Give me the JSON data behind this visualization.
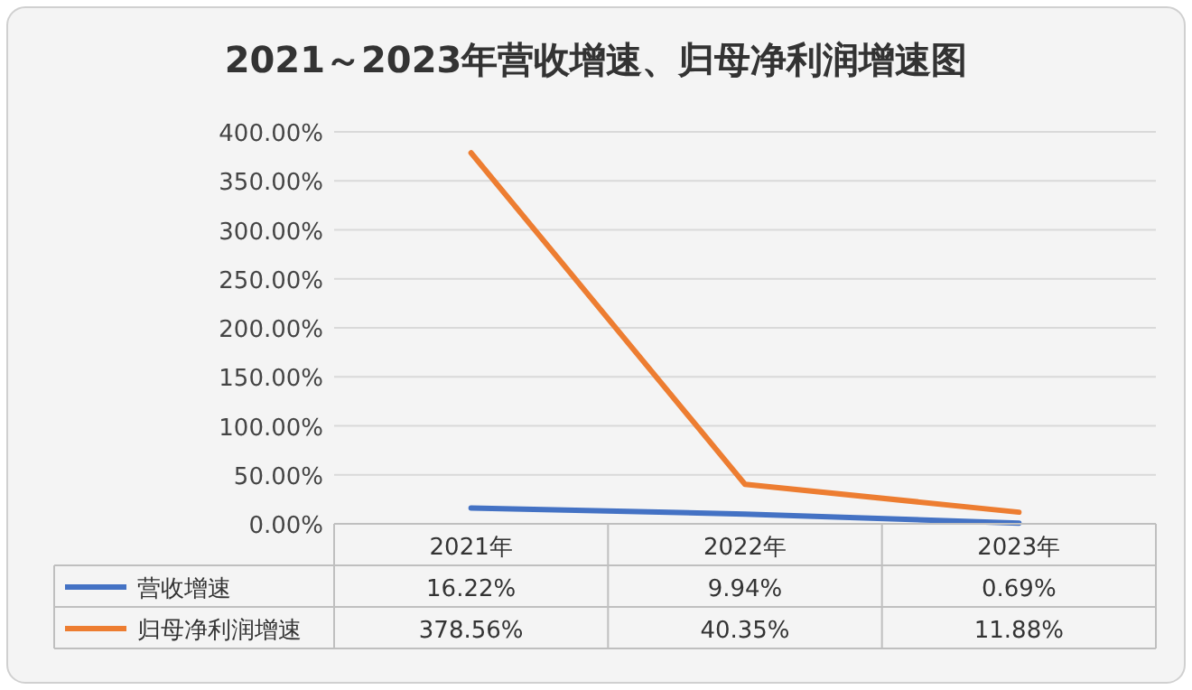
{
  "chart_data": {
    "type": "line",
    "title": "2021～2023年营收增速、归母净利润增速图",
    "categories": [
      "2021年",
      "2022年",
      "2023年"
    ],
    "series": [
      {
        "name": "营收增速",
        "color": "#4472c4",
        "values": [
          16.22,
          9.94,
          0.69
        ],
        "value_labels": [
          "16.22%",
          "9.94%",
          "0.69%"
        ]
      },
      {
        "name": "归母净利润增速",
        "color": "#ed7d31",
        "values": [
          378.56,
          40.35,
          11.88
        ],
        "value_labels": [
          "378.56%",
          "40.35%",
          "11.88%"
        ]
      }
    ],
    "ylim": [
      0,
      400
    ],
    "yticks": [
      {
        "value": 0,
        "label": "0.00%"
      },
      {
        "value": 50,
        "label": "50.00%"
      },
      {
        "value": 100,
        "label": "100.00%"
      },
      {
        "value": 150,
        "label": "150.00%"
      },
      {
        "value": 200,
        "label": "200.00%"
      },
      {
        "value": 250,
        "label": "250.00%"
      },
      {
        "value": 300,
        "label": "300.00%"
      },
      {
        "value": 350,
        "label": "350.00%"
      },
      {
        "value": 400,
        "label": "400.00%"
      }
    ],
    "grid": "y",
    "legend": "bottom"
  }
}
